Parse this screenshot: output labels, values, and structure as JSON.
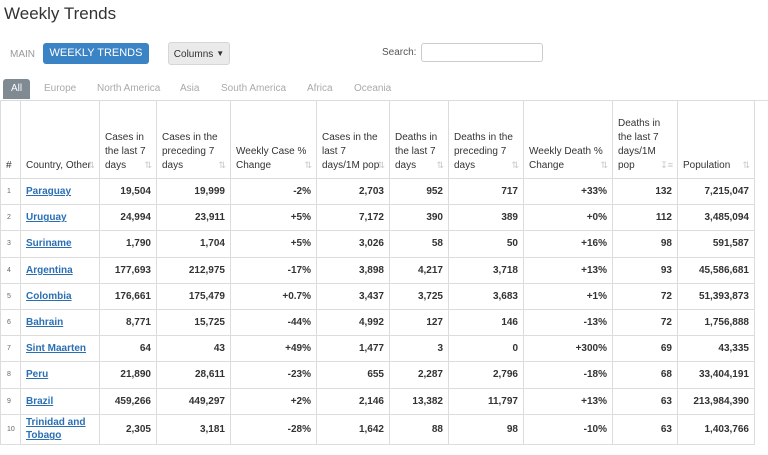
{
  "page": {
    "title": "Weekly Trends"
  },
  "toolbar": {
    "main_label": "MAIN",
    "weekly_label": "WEEKLY TRENDS",
    "columns_label": "Columns",
    "search_label": "Search:",
    "search_value": ""
  },
  "tabs": [
    "All",
    "Europe",
    "North America",
    "Asia",
    "South America",
    "Africa",
    "Oceania"
  ],
  "colors": {
    "accent": "#3a83c4",
    "active_tab": "#7f8a93",
    "link": "#2a6fb3"
  },
  "table": {
    "headers": [
      "#",
      "Country, Other",
      "Cases in the last 7 days",
      "Cases in the preceding 7 days",
      "Weekly Case % Change",
      "Cases in the last 7 days/1M pop",
      "Deaths in the last 7 days",
      "Deaths in the preceding 7 days",
      "Weekly Death % Change",
      "Deaths in the last 7 days/1M pop",
      "Population"
    ],
    "rows": [
      [
        "1",
        "Paraguay",
        "19,504",
        "19,999",
        "-2%",
        "2,703",
        "952",
        "717",
        "+33%",
        "132",
        "7,215,047"
      ],
      [
        "2",
        "Uruguay",
        "24,994",
        "23,911",
        "+5%",
        "7,172",
        "390",
        "389",
        "+0%",
        "112",
        "3,485,094"
      ],
      [
        "3",
        "Suriname",
        "1,790",
        "1,704",
        "+5%",
        "3,026",
        "58",
        "50",
        "+16%",
        "98",
        "591,587"
      ],
      [
        "4",
        "Argentina",
        "177,693",
        "212,975",
        "-17%",
        "3,898",
        "4,217",
        "3,718",
        "+13%",
        "93",
        "45,586,681"
      ],
      [
        "5",
        "Colombia",
        "176,661",
        "175,479",
        "+0.7%",
        "3,437",
        "3,725",
        "3,683",
        "+1%",
        "72",
        "51,393,873"
      ],
      [
        "6",
        "Bahrain",
        "8,771",
        "15,725",
        "-44%",
        "4,992",
        "127",
        "146",
        "-13%",
        "72",
        "1,756,888"
      ],
      [
        "7",
        "Sint Maarten",
        "64",
        "43",
        "+49%",
        "1,477",
        "3",
        "0",
        "+300%",
        "69",
        "43,335"
      ],
      [
        "8",
        "Peru",
        "21,890",
        "28,611",
        "-23%",
        "655",
        "2,287",
        "2,796",
        "-18%",
        "68",
        "33,404,191"
      ],
      [
        "9",
        "Brazil",
        "459,266",
        "449,297",
        "+2%",
        "2,146",
        "13,382",
        "11,797",
        "+13%",
        "63",
        "213,984,390"
      ],
      [
        "10",
        "Trinidad and Tobago",
        "2,305",
        "3,181",
        "-28%",
        "1,642",
        "88",
        "98",
        "-10%",
        "63",
        "1,403,766"
      ]
    ]
  }
}
